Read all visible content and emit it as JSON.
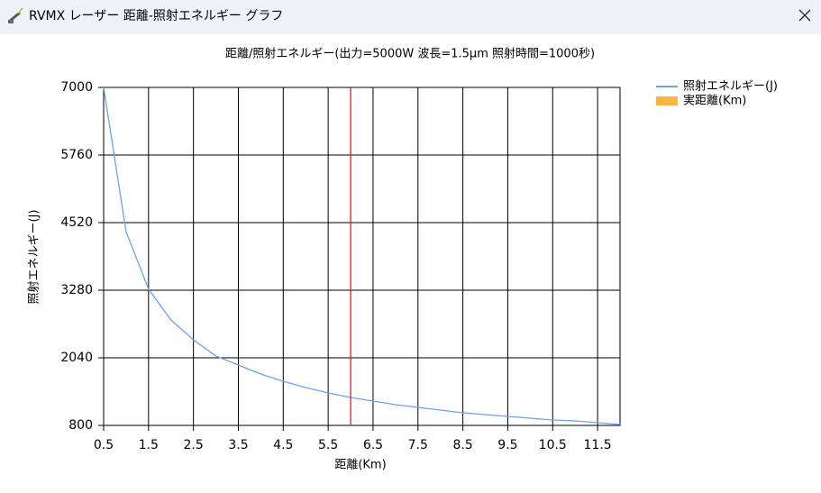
{
  "window": {
    "title": "RVMX レーザー 距離-照射エネルギー グラフ"
  },
  "chart_data": {
    "type": "line",
    "title": "距離/照射エネルギー(出力=5000W 波長=1.5μm 照射時間=1000秒)",
    "x_label": "距離(Km)",
    "y_label": "照射エネルギー(J)",
    "x": [
      0.5,
      1,
      1.5,
      2,
      2.5,
      3,
      3.5,
      4,
      4.5,
      5,
      5.5,
      6,
      6.5,
      7,
      7.5,
      8,
      8.5,
      9,
      9.5,
      10,
      10.5,
      11,
      11.5,
      12
    ],
    "series": [
      {
        "name": "照射エネルギー(J)",
        "color": "#6aa3ee",
        "values": [
          7000,
          4354,
          3300,
          2734,
          2370,
          2073,
          1908,
          1742,
          1610,
          1494,
          1395,
          1312,
          1246,
          1180,
          1130,
          1081,
          1031,
          998,
          965,
          932,
          899,
          883,
          850,
          817
        ]
      }
    ],
    "distance_marker": {
      "name": "実距離(Km)",
      "color": "#ffb340",
      "line_color": "#d42020",
      "value": 6.0
    },
    "xlim": [
      0.5,
      12
    ],
    "ylim": [
      800,
      7000
    ],
    "xticks": [
      0.5,
      1.5,
      2.5,
      3.5,
      4.5,
      5.5,
      6.5,
      7.5,
      8.5,
      9.5,
      10.5,
      11.5
    ],
    "yticks": [
      800,
      2040,
      3280,
      4520,
      5760,
      7000
    ],
    "grid": true
  }
}
